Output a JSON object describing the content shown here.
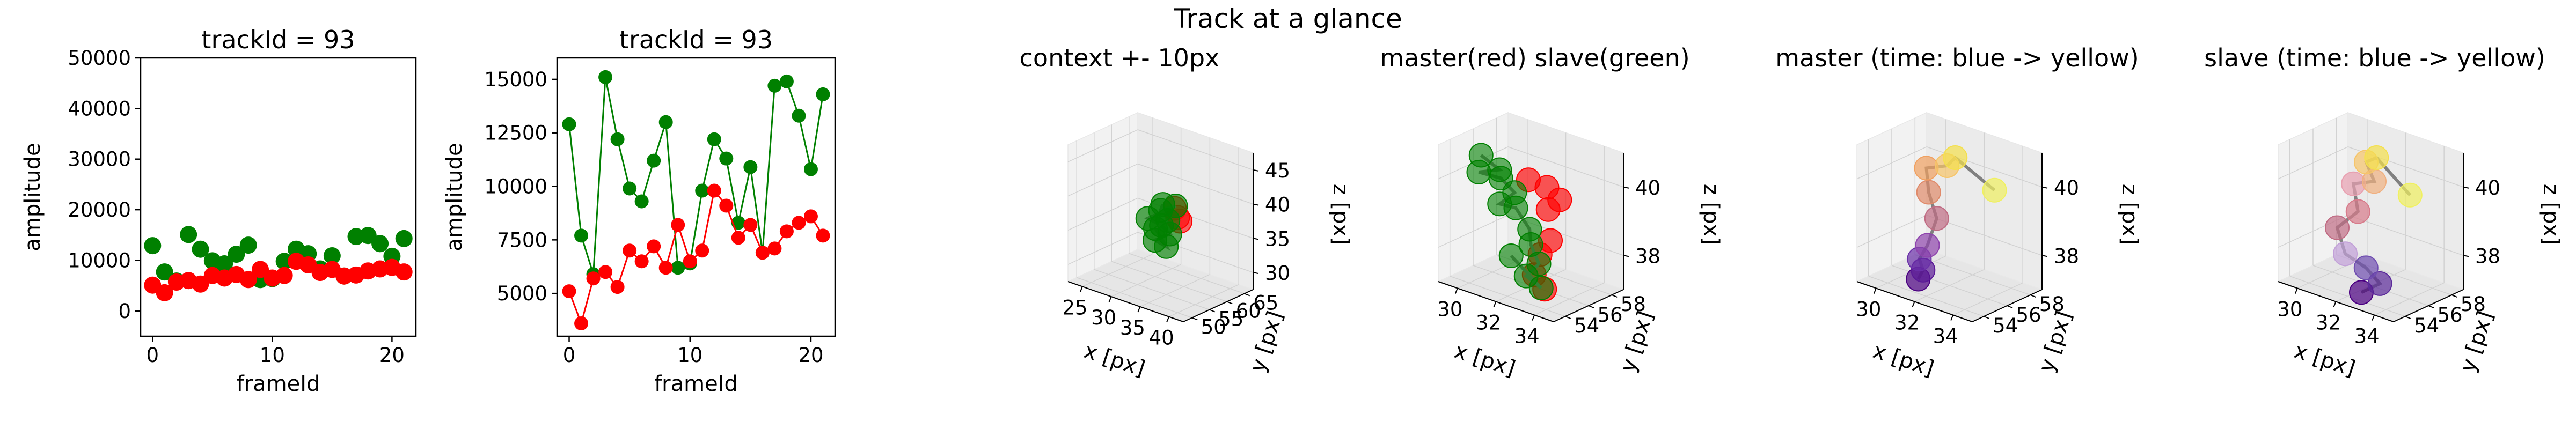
{
  "figure": {
    "suptitle": "Track at a glance"
  },
  "chart_data": [
    {
      "type": "scatter",
      "title": "trackId = 93",
      "xlabel": "frameId",
      "ylabel": "amplitude",
      "xlim": [
        -1,
        22
      ],
      "ylim": [
        -5000,
        50000
      ],
      "xticks": [
        "0",
        "10",
        "20"
      ],
      "yticks": [
        "0",
        "10000",
        "20000",
        "30000",
        "40000",
        "50000"
      ],
      "grid": false,
      "series": [
        {
          "color": "#008000",
          "x": [
            0,
            1,
            2,
            3,
            4,
            5,
            6,
            7,
            8,
            9,
            10,
            11,
            12,
            13,
            14,
            15,
            16,
            17,
            18,
            19,
            20,
            21
          ],
          "values": [
            12900,
            7700,
            5900,
            15100,
            12200,
            9900,
            9300,
            11200,
            13000,
            6200,
            6400,
            9800,
            12200,
            11300,
            8300,
            10900,
            6900,
            14700,
            14900,
            13300,
            10800,
            14300
          ]
        },
        {
          "color": "#ff0000",
          "x": [
            0,
            1,
            2,
            3,
            4,
            5,
            6,
            7,
            8,
            9,
            10,
            11,
            12,
            13,
            14,
            15,
            16,
            17,
            18,
            19,
            20,
            21
          ],
          "values": [
            5100,
            3600,
            5700,
            6000,
            5300,
            7000,
            6500,
            7200,
            6200,
            8200,
            6500,
            7000,
            9800,
            9100,
            7600,
            8200,
            6900,
            7100,
            7900,
            8300,
            8600,
            7700
          ]
        }
      ]
    },
    {
      "type": "line",
      "title": "trackId = 93",
      "xlabel": "frameId",
      "ylabel": "amplitude",
      "xlim": [
        -1,
        22
      ],
      "ylim": [
        3000,
        16000
      ],
      "xticks": [
        "0",
        "10",
        "20"
      ],
      "yticks": [
        "5000",
        "7500",
        "10000",
        "12500",
        "15000"
      ],
      "grid": false,
      "series": [
        {
          "color": "#008000",
          "x": [
            0,
            1,
            2,
            3,
            4,
            5,
            6,
            7,
            8,
            9,
            10,
            11,
            12,
            13,
            14,
            15,
            16,
            17,
            18,
            19,
            20,
            21
          ],
          "values": [
            12900,
            7700,
            5900,
            15100,
            12200,
            9900,
            9300,
            11200,
            13000,
            6200,
            6400,
            9800,
            12200,
            11300,
            8300,
            10900,
            6900,
            14700,
            14900,
            13300,
            10800,
            14300
          ]
        },
        {
          "color": "#ff0000",
          "x": [
            0,
            1,
            2,
            3,
            4,
            5,
            6,
            7,
            8,
            9,
            10,
            11,
            12,
            13,
            14,
            15,
            16,
            17,
            18,
            19,
            20,
            21
          ],
          "values": [
            5100,
            3600,
            5700,
            6000,
            5300,
            7000,
            6500,
            7200,
            6200,
            8200,
            6500,
            7000,
            9800,
            9100,
            7600,
            8200,
            6900,
            7100,
            7900,
            8300,
            8600,
            7700
          ]
        }
      ]
    },
    {
      "type": "scatter",
      "title": "context +- 10px",
      "xlabel": "x [px]",
      "ylabel": "y [px]",
      "zlabel": "z [px]",
      "xticks": [
        "25",
        "30",
        "35",
        "40"
      ],
      "yticks": [
        "50",
        "55",
        "60",
        "65"
      ],
      "zticks": [
        "30",
        "35",
        "40",
        "45"
      ]
    },
    {
      "type": "scatter",
      "title": "master(red) slave(green)",
      "xlabel": "x [px]",
      "ylabel": "y [px]",
      "zlabel": "z [px]",
      "xticks": [
        "30",
        "32",
        "34"
      ],
      "yticks": [
        "54",
        "56",
        "58"
      ],
      "zticks": [
        "38",
        "40"
      ]
    },
    {
      "type": "scatter",
      "title": "master (time: blue -> yellow)",
      "xlabel": "x [px]",
      "ylabel": "y [px]",
      "zlabel": "z [px]",
      "xticks": [
        "30",
        "32",
        "34"
      ],
      "yticks": [
        "54",
        "56",
        "58"
      ],
      "zticks": [
        "38",
        "40"
      ]
    },
    {
      "type": "scatter",
      "title": "slave (time: blue -> yellow)",
      "xlabel": "x [px]",
      "ylabel": "y [px]",
      "zlabel": "z [px]",
      "xticks": [
        "30",
        "32",
        "34"
      ],
      "yticks": [
        "54",
        "56",
        "58"
      ],
      "zticks": [
        "38",
        "40"
      ]
    }
  ]
}
